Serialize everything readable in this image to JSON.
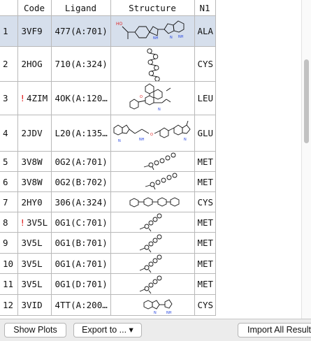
{
  "columns": {
    "index": "",
    "code": "Code",
    "ligand": "Ligand",
    "structure": "Structure",
    "n1": "N1"
  },
  "rows": [
    {
      "index": "1",
      "code": "3VF9",
      "warn": "",
      "ligand": "477(A:701)",
      "n1": "ALA",
      "structure_icon": "ligand-structure-icon",
      "selected": true
    },
    {
      "index": "2",
      "code": "2HOG",
      "warn": "",
      "ligand": "710(A:324)",
      "n1": "CYS",
      "structure_icon": "ligand-structure-icon"
    },
    {
      "index": "3",
      "code": "4ZIM",
      "warn": "!",
      "ligand": "4OK(A:120…",
      "n1": "LEU",
      "structure_icon": "ligand-structure-icon"
    },
    {
      "index": "4",
      "code": "2JDV",
      "warn": "",
      "ligand": "L20(A:135…",
      "n1": "GLU",
      "structure_icon": "ligand-structure-icon"
    },
    {
      "index": "5",
      "code": "3V8W",
      "warn": "",
      "ligand": "0G2(A:701)",
      "n1": "MET",
      "structure_icon": "ligand-structure-icon"
    },
    {
      "index": "6",
      "code": "3V8W",
      "warn": "",
      "ligand": "0G2(B:702)",
      "n1": "MET",
      "structure_icon": "ligand-structure-icon"
    },
    {
      "index": "7",
      "code": "2HY0",
      "warn": "",
      "ligand": "306(A:324)",
      "n1": "CYS",
      "structure_icon": "ligand-structure-icon"
    },
    {
      "index": "8",
      "code": "3V5L",
      "warn": "!",
      "ligand": "0G1(C:701)",
      "n1": "MET",
      "structure_icon": "ligand-structure-icon"
    },
    {
      "index": "9",
      "code": "3V5L",
      "warn": "",
      "ligand": "0G1(B:701)",
      "n1": "MET",
      "structure_icon": "ligand-structure-icon"
    },
    {
      "index": "10",
      "code": "3V5L",
      "warn": "",
      "ligand": "0G1(A:701)",
      "n1": "MET",
      "structure_icon": "ligand-structure-icon"
    },
    {
      "index": "11",
      "code": "3V5L",
      "warn": "",
      "ligand": "0G1(D:701)",
      "n1": "MET",
      "structure_icon": "ligand-structure-icon"
    },
    {
      "index": "12",
      "code": "3VID",
      "warn": "",
      "ligand": "4TT(A:200…",
      "n1": "CYS",
      "structure_icon": "ligand-structure-icon"
    }
  ],
  "buttons": {
    "show_plots": "Show Plots",
    "export": "Export to ... ▾",
    "import_all": "Import All Results"
  },
  "colors": {
    "selected_row": "#d6dfec",
    "warning": "#dd1111",
    "oxygen_atom": "#e02020",
    "nitrogen_atom": "#2040e0"
  }
}
